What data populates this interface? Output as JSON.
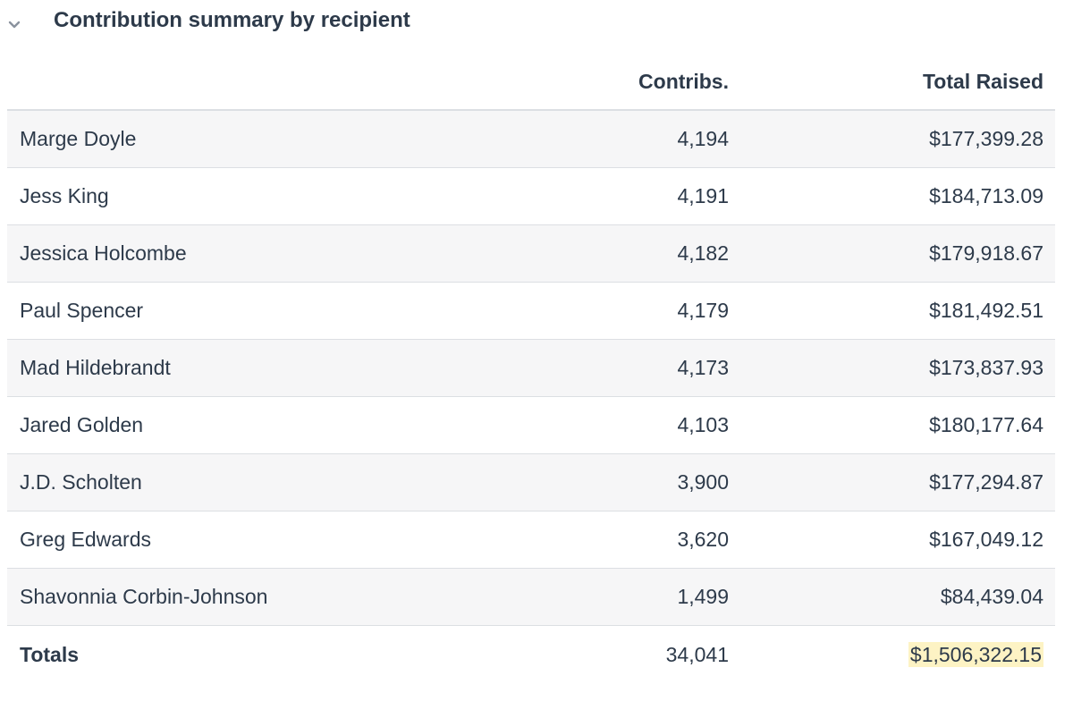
{
  "section": {
    "title": "Contribution summary by recipient",
    "toggle_icon": "chevron-down-icon"
  },
  "table": {
    "headers": {
      "name": "",
      "contribs": "Contribs.",
      "total": "Total Raised"
    },
    "rows": [
      {
        "name": "Marge Doyle",
        "contribs": "4,194",
        "total": "$177,399.28"
      },
      {
        "name": "Jess King",
        "contribs": "4,191",
        "total": "$184,713.09"
      },
      {
        "name": "Jessica Holcombe",
        "contribs": "4,182",
        "total": "$179,918.67"
      },
      {
        "name": "Paul Spencer",
        "contribs": "4,179",
        "total": "$181,492.51"
      },
      {
        "name": "Mad Hildebrandt",
        "contribs": "4,173",
        "total": "$173,837.93"
      },
      {
        "name": "Jared Golden",
        "contribs": "4,103",
        "total": "$180,177.64"
      },
      {
        "name": "J.D. Scholten",
        "contribs": "3,900",
        "total": "$177,294.87"
      },
      {
        "name": "Greg Edwards",
        "contribs": "3,620",
        "total": "$167,049.12"
      },
      {
        "name": "Shavonnia Corbin-Johnson",
        "contribs": "1,499",
        "total": "$84,439.04"
      }
    ],
    "totals": {
      "label": "Totals",
      "contribs": "34,041",
      "total": "$1,506,322.15"
    }
  },
  "colors": {
    "text": "#2d3a4a",
    "row_stripe": "#f6f6f7",
    "border": "#dcdfe3",
    "highlight": "#fdf3c4"
  }
}
